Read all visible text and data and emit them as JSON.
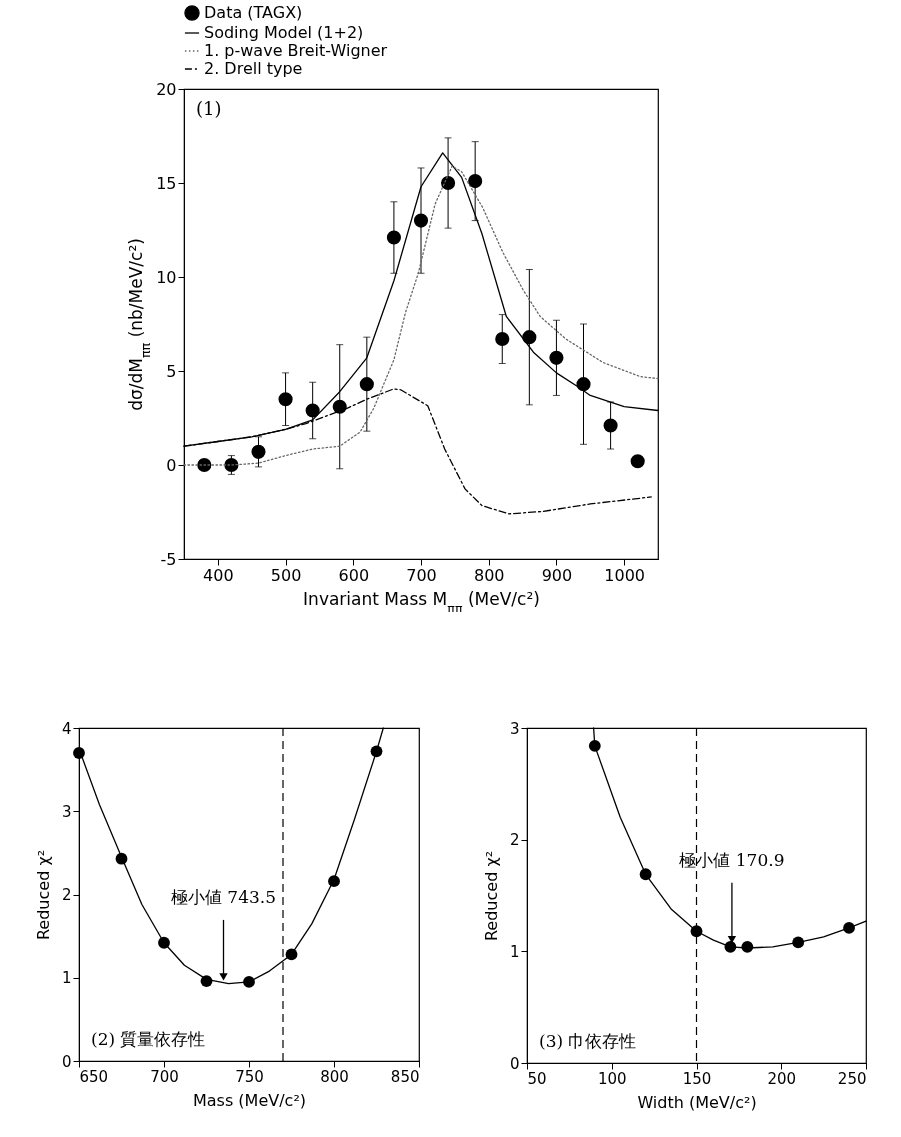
{
  "chart_data": [
    {
      "type": "scatter",
      "xlabel": "Invariant Mass M$_{ππ}$ (MeV/c²)",
      "ylabel": "dσ/dM$_{ππ}$ (nb/MeV/c²)",
      "xlim": [
        350,
        1050
      ],
      "xticks": [
        400,
        500,
        600,
        700,
        800,
        900,
        1000
      ],
      "ylim": [
        -5,
        20
      ],
      "yticks": [
        -5,
        0,
        5,
        10,
        15,
        20
      ],
      "legend": "top",
      "annotations": [
        "(1)"
      ],
      "series": [
        {
          "name": "Data (TAGX)",
          "type": "scatter",
          "marker": "circle",
          "color": "#000000",
          "x": [
            380,
            420,
            460,
            500,
            540,
            580,
            620,
            660,
            700,
            740,
            780,
            820,
            860,
            900,
            940,
            980,
            1020
          ],
          "values": [
            0,
            0,
            0.7,
            3.5,
            2.9,
            3.1,
            4.3,
            12.1,
            13.0,
            15.0,
            15.1,
            6.7,
            6.8,
            5.7,
            4.3,
            2.1,
            0.2
          ],
          "errors": [
            null,
            0.5,
            0.8,
            1.4,
            1.5,
            3.3,
            2.5,
            1.9,
            2.8,
            2.4,
            2.1,
            1.3,
            3.6,
            2.0,
            3.2,
            1.25,
            null
          ]
        },
        {
          "name": "Soding Model (1+2)",
          "type": "line",
          "color": "#000000",
          "line_style": "solid",
          "x": [
            350,
            400,
            450,
            500,
            540,
            580,
            620,
            660,
            700,
            732,
            760,
            790,
            826,
            866,
            900,
            930,
            950,
            1000,
            1050
          ],
          "values": [
            1.0,
            1.25,
            1.5,
            1.9,
            2.4,
            3.9,
            5.7,
            9.8,
            14.8,
            16.6,
            15.3,
            12.3,
            7.9,
            6.0,
            4.9,
            4.2,
            3.7,
            3.1,
            2.9
          ]
        },
        {
          "name": "1. p-wave Breit-Wigner",
          "type": "line",
          "color": "#666666",
          "line_style": "dotted",
          "x": [
            350,
            420,
            460,
            500,
            540,
            580,
            610,
            630,
            660,
            677,
            696,
            721,
            746,
            760,
            791,
            821,
            851,
            876,
            914,
            969,
            1024,
            1050
          ],
          "values": [
            0,
            0,
            0.1,
            0.5,
            0.85,
            1.0,
            1.75,
            3.0,
            5.6,
            8.1,
            10.2,
            13.9,
            15.9,
            15.6,
            13.7,
            11.3,
            9.3,
            7.9,
            6.7,
            5.45,
            4.7,
            4.6
          ]
        },
        {
          "name": "2. Drell type",
          "type": "line",
          "color": "#000000",
          "line_style": "dashed",
          "x": [
            350,
            400,
            450,
            500,
            530,
            590,
            620,
            660,
            670,
            710,
            735,
            765,
            790,
            830,
            880,
            950,
            1040
          ],
          "values": [
            1.0,
            1.25,
            1.5,
            1.9,
            2.2,
            3.0,
            3.5,
            4.05,
            4.0,
            3.15,
            0.85,
            -1.27,
            -2.16,
            -2.6,
            -2.47,
            -2.07,
            -1.7
          ]
        }
      ]
    },
    {
      "type": "scatter",
      "xlabel": "Mass (MeV/c²)",
      "ylabel": "Reduced χ²",
      "xlim": [
        650,
        850
      ],
      "xticks": [
        650,
        700,
        750,
        800,
        850
      ],
      "ylim": [
        0,
        4
      ],
      "yticks": [
        0,
        1,
        2,
        3,
        4
      ],
      "ref_lines": [
        {
          "axis": "x",
          "value": 770,
          "line_style": "dashed"
        }
      ],
      "annotations": [
        {
          "text": "極小値 743.5",
          "x": 735,
          "y": 0.95
        },
        "(2) 質量依存性"
      ],
      "series": [
        {
          "type": "scatter",
          "marker": "circle",
          "color": "#000000",
          "x": [
            650,
            675,
            700,
            725,
            750,
            775,
            800,
            825
          ],
          "values": [
            3.7,
            2.43,
            1.42,
            0.96,
            0.95,
            1.28,
            2.16,
            3.72
          ]
        },
        {
          "type": "line",
          "color": "#000000",
          "line_style": "solid",
          "x": [
            650,
            662,
            675,
            687,
            700,
            712,
            725,
            738,
            750,
            762,
            775,
            787,
            800,
            812,
            825,
            829
          ],
          "values": [
            3.75,
            3.08,
            2.45,
            1.88,
            1.42,
            1.15,
            0.98,
            0.93,
            0.95,
            1.08,
            1.28,
            1.65,
            2.18,
            2.9,
            3.72,
            4.0
          ]
        }
      ]
    },
    {
      "type": "scatter",
      "xlabel": "Width (MeV/c²)",
      "ylabel": "Reduced χ²",
      "xlim": [
        50,
        250
      ],
      "xticks": [
        50,
        100,
        150,
        200,
        250
      ],
      "ylim": [
        0,
        3
      ],
      "yticks": [
        0,
        1,
        2,
        3
      ],
      "ref_lines": [
        {
          "axis": "x",
          "value": 150,
          "line_style": "dashed"
        }
      ],
      "annotations": [
        {
          "text": "極小値 170.9",
          "x": 170.9,
          "y": 1.06
        },
        "(3) 巾依存性"
      ],
      "series": [
        {
          "type": "scatter",
          "marker": "circle",
          "color": "#000000",
          "x": [
            90,
            120,
            150,
            170,
            180,
            210,
            240
          ],
          "values": [
            2.84,
            1.69,
            1.18,
            1.04,
            1.04,
            1.08,
            1.21
          ]
        },
        {
          "type": "line",
          "color": "#000000",
          "line_style": "solid",
          "x": [
            89.3,
            90,
            105,
            120,
            135,
            150,
            160,
            170,
            180,
            195,
            210,
            225,
            240,
            250
          ],
          "values": [
            3.0,
            2.84,
            2.2,
            1.69,
            1.38,
            1.18,
            1.1,
            1.04,
            1.03,
            1.04,
            1.08,
            1.13,
            1.21,
            1.27
          ]
        }
      ]
    }
  ]
}
